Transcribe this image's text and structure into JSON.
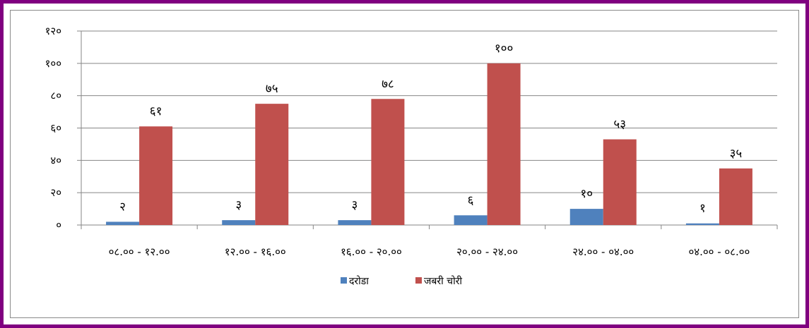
{
  "chart_data": {
    "type": "bar",
    "title": "",
    "xlabel": "",
    "ylabel": "",
    "ylim": [
      0,
      120
    ],
    "y_ticks": [
      0,
      20,
      40,
      60,
      80,
      100,
      120
    ],
    "y_tick_labels": [
      "०",
      "२०",
      "४०",
      "६०",
      "८०",
      "१००",
      "१२०"
    ],
    "grid": "horizontal",
    "legend_position": "bottom",
    "categories": [
      "०८.०० - १२.००",
      "१२.०० - १६.००",
      "१६.०० - २०.००",
      "२०.०० - २४.००",
      "२४.०० - ०४.००",
      "०४.०० - ०८.००"
    ],
    "series": [
      {
        "name": "दरोडा",
        "color": "#4f81bd",
        "values": [
          2,
          3,
          3,
          6,
          10,
          1
        ],
        "labels": [
          "२",
          "३",
          "३",
          "६",
          "१०",
          "१"
        ]
      },
      {
        "name": "जबरी चोरी",
        "color": "#c0504d",
        "values": [
          61,
          75,
          78,
          100,
          53,
          35
        ],
        "labels": [
          "६१",
          "७५",
          "७८",
          "१००",
          "५३",
          "३५"
        ]
      }
    ]
  }
}
